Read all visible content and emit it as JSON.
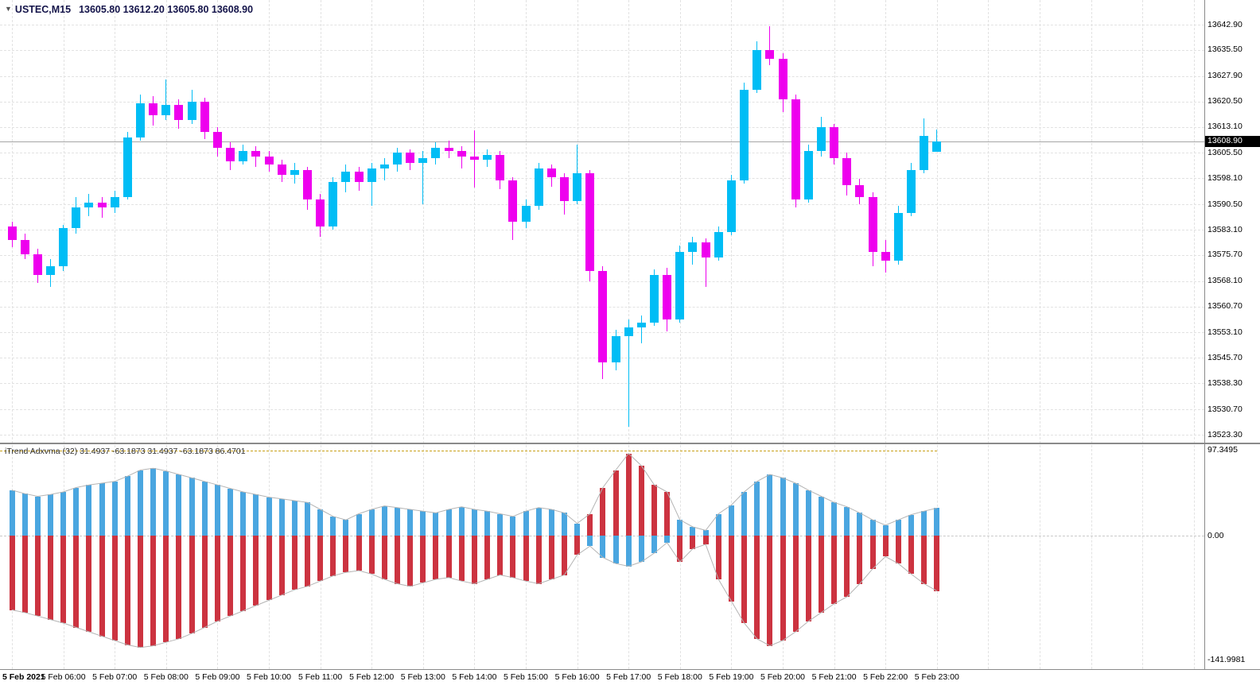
{
  "title": {
    "symbol": "USTEC,M15",
    "ohlc": "13605.80 13612.20 13605.80 13608.90"
  },
  "colors": {
    "candle_up": "#00bdf5",
    "candle_down": "#ee00ee",
    "hist_blue": "#4aa6e0",
    "hist_red": "#cc3340",
    "envelope": "#b4b4b4",
    "level_line": "#c8a018",
    "grid": "#e2e2e2",
    "price_tag_bg": "#000000",
    "price_tag_text": "#ffffff"
  },
  "price_axis": {
    "labels": [
      "13642.90",
      "13635.50",
      "13627.90",
      "13620.50",
      "13613.10",
      "13605.50",
      "13598.10",
      "13590.50",
      "13583.10",
      "13575.70",
      "13568.10",
      "13560.70",
      "13553.10",
      "13545.70",
      "13538.30",
      "13530.70",
      "13523.30"
    ],
    "current": "13608.90"
  },
  "indicator": {
    "label": "iTrend Adxvma (32) 31.4937 -63.1873 31.4937 -63.1873 86.4701",
    "axis": [
      "97.3495",
      "0.00",
      "-141.9981"
    ],
    "level": 97.3495
  },
  "time_axis": [
    "5 Feb 2021",
    "5 Feb 06:00",
    "5 Feb 07:00",
    "5 Feb 08:00",
    "5 Feb 09:00",
    "5 Feb 10:00",
    "5 Feb 11:00",
    "5 Feb 12:00",
    "5 Feb 13:00",
    "5 Feb 14:00",
    "5 Feb 15:00",
    "5 Feb 16:00",
    "5 Feb 17:00",
    "5 Feb 18:00",
    "5 Feb 19:00",
    "5 Feb 20:00",
    "5 Feb 21:00",
    "5 Feb 22:00",
    "5 Feb 23:00"
  ],
  "chart_data": {
    "type": "candlestick",
    "symbol": "USTEC",
    "timeframe": "M15",
    "price_ylim": [
      13523.3,
      13642.9
    ],
    "last_price": 13608.9,
    "candles": [
      [
        13584.0,
        13585.5,
        13578.0,
        13580.0
      ],
      [
        13580.0,
        13582.0,
        13574.5,
        13576.0
      ],
      [
        13576.0,
        13577.5,
        13567.5,
        13570.0
      ],
      [
        13570.0,
        13574.5,
        13566.5,
        13572.5
      ],
      [
        13572.5,
        13584.5,
        13571.0,
        13583.5
      ],
      [
        13583.5,
        13592.5,
        13582.0,
        13589.5
      ],
      [
        13589.5,
        13593.5,
        13587.0,
        13591.0
      ],
      [
        13591.0,
        13592.5,
        13586.5,
        13589.5
      ],
      [
        13589.5,
        13594.5,
        13588.0,
        13592.5
      ],
      [
        13592.5,
        13611.5,
        13592.0,
        13610.0
      ],
      [
        13610.0,
        13622.5,
        13609.0,
        13620.0
      ],
      [
        13620.0,
        13622.0,
        13613.5,
        13616.5
      ],
      [
        13616.5,
        13627.0,
        13615.0,
        13619.5
      ],
      [
        13619.5,
        13621.0,
        13612.5,
        13615.0
      ],
      [
        13615.0,
        13624.0,
        13614.0,
        13620.5
      ],
      [
        13620.5,
        13621.5,
        13609.5,
        13611.5
      ],
      [
        13611.5,
        13613.0,
        13604.5,
        13607.0
      ],
      [
        13607.0,
        13608.5,
        13600.5,
        13603.0
      ],
      [
        13603.0,
        13608.0,
        13602.0,
        13606.0
      ],
      [
        13606.0,
        13607.5,
        13601.5,
        13604.5
      ],
      [
        13604.5,
        13606.0,
        13600.0,
        13602.0
      ],
      [
        13602.0,
        13603.5,
        13597.0,
        13599.0
      ],
      [
        13599.0,
        13602.5,
        13596.5,
        13600.5
      ],
      [
        13600.5,
        13601.5,
        13589.0,
        13592.0
      ],
      [
        13592.0,
        13593.5,
        13581.0,
        13584.0
      ],
      [
        13584.0,
        13598.5,
        13583.0,
        13597.0
      ],
      [
        13597.0,
        13602.0,
        13594.0,
        13600.0
      ],
      [
        13600.0,
        13601.5,
        13594.5,
        13597.0
      ],
      [
        13597.0,
        13602.5,
        13590.0,
        13601.0
      ],
      [
        13601.0,
        13604.0,
        13597.5,
        13602.0
      ],
      [
        13602.0,
        13607.0,
        13600.0,
        13605.5
      ],
      [
        13605.5,
        13606.5,
        13600.5,
        13602.5
      ],
      [
        13602.5,
        13606.0,
        13590.5,
        13604.0
      ],
      [
        13604.0,
        13608.5,
        13602.0,
        13607.0
      ],
      [
        13607.0,
        13609.0,
        13604.0,
        13606.0
      ],
      [
        13606.0,
        13607.5,
        13601.0,
        13604.5
      ],
      [
        13604.5,
        13612.0,
        13595.5,
        13603.5
      ],
      [
        13603.5,
        13606.5,
        13601.5,
        13605.0
      ],
      [
        13605.0,
        13606.0,
        13595.0,
        13597.5
      ],
      [
        13597.5,
        13598.5,
        13580.0,
        13585.5
      ],
      [
        13585.5,
        13592.0,
        13583.5,
        13590.0
      ],
      [
        13590.0,
        13602.5,
        13589.0,
        13601.0
      ],
      [
        13601.0,
        13602.0,
        13595.5,
        13598.5
      ],
      [
        13598.5,
        13599.5,
        13587.5,
        13591.5
      ],
      [
        13591.5,
        13608.0,
        13590.5,
        13599.5
      ],
      [
        13599.5,
        13600.5,
        13568.0,
        13571.0
      ],
      [
        13571.0,
        13572.5,
        13539.5,
        13544.5
      ],
      [
        13544.5,
        13554.0,
        13542.0,
        13552.0
      ],
      [
        13552.0,
        13557.0,
        13525.5,
        13554.5
      ],
      [
        13554.5,
        13558.0,
        13550.0,
        13556.0
      ],
      [
        13556.0,
        13571.5,
        13555.0,
        13570.0
      ],
      [
        13570.0,
        13572.0,
        13553.5,
        13557.0
      ],
      [
        13557.0,
        13578.5,
        13556.0,
        13576.5
      ],
      [
        13576.5,
        13581.0,
        13573.0,
        13579.5
      ],
      [
        13579.5,
        13580.5,
        13566.5,
        13575.0
      ],
      [
        13575.0,
        13584.0,
        13574.0,
        13582.5
      ],
      [
        13582.5,
        13599.0,
        13581.5,
        13597.5
      ],
      [
        13597.5,
        13626.0,
        13596.5,
        13624.0
      ],
      [
        13624.0,
        13638.0,
        13623.0,
        13635.5
      ],
      [
        13635.5,
        13642.5,
        13631.0,
        13633.0
      ],
      [
        13633.0,
        13634.5,
        13617.5,
        13621.0
      ],
      [
        13621.0,
        13622.5,
        13589.5,
        13592.0
      ],
      [
        13592.0,
        13608.0,
        13591.0,
        13606.0
      ],
      [
        13606.0,
        13616.0,
        13604.5,
        13613.0
      ],
      [
        13613.0,
        13614.0,
        13602.0,
        13604.0
      ],
      [
        13604.0,
        13605.5,
        13593.0,
        13596.0
      ],
      [
        13596.0,
        13598.0,
        13590.5,
        13592.5
      ],
      [
        13592.5,
        13594.0,
        13572.5,
        13576.5
      ],
      [
        13576.5,
        13580.0,
        13570.5,
        13574.0
      ],
      [
        13574.0,
        13590.0,
        13573.0,
        13588.0
      ],
      [
        13588.0,
        13602.5,
        13587.0,
        13600.5
      ],
      [
        13600.5,
        13615.5,
        13599.5,
        13610.5
      ],
      [
        13605.8,
        13612.2,
        13605.8,
        13608.9
      ]
    ],
    "indicator": {
      "name": "iTrend Adxvma",
      "period": 32,
      "current_values": [
        31.4937,
        -63.1873,
        31.4937,
        -63.1873,
        86.4701
      ],
      "ylim": [
        -141.9981,
        97.3495
      ],
      "level": 97.3495,
      "series": [
        {
          "name": "trend-up",
          "values": [
            52,
            48,
            45,
            47,
            50,
            55,
            58,
            60,
            62,
            68,
            75,
            77,
            74,
            70,
            66,
            62,
            58,
            54,
            50,
            47,
            44,
            42,
            40,
            38,
            30,
            22,
            18,
            25,
            30,
            34,
            32,
            30,
            28,
            26,
            30,
            33,
            30,
            28,
            25,
            22,
            28,
            32,
            30,
            26,
            14,
            -12,
            -25,
            -32,
            -35,
            -30,
            -20,
            -8,
            18,
            10,
            6,
            25,
            35,
            50,
            62,
            70,
            66,
            60,
            52,
            45,
            38,
            33,
            26,
            18,
            12,
            18,
            24,
            28,
            31.4937
          ]
        },
        {
          "name": "trend-down",
          "values": [
            -85,
            -88,
            -92,
            -96,
            -100,
            -105,
            -110,
            -115,
            -120,
            -125,
            -128,
            -126,
            -122,
            -118,
            -112,
            -105,
            -98,
            -92,
            -86,
            -80,
            -74,
            -68,
            -62,
            -58,
            -52,
            -46,
            -42,
            -40,
            -44,
            -50,
            -55,
            -58,
            -54,
            -50,
            -48,
            -52,
            -55,
            -50,
            -45,
            -48,
            -52,
            -55,
            -50,
            -45,
            -22,
            25,
            55,
            75,
            94,
            80,
            58,
            50,
            -30,
            -15,
            -10,
            -50,
            -75,
            -100,
            -118,
            -126,
            -120,
            -110,
            -98,
            -88,
            -78,
            -70,
            -55,
            -38,
            -24,
            -32,
            -44,
            -55,
            -63.1873
          ]
        }
      ]
    }
  }
}
